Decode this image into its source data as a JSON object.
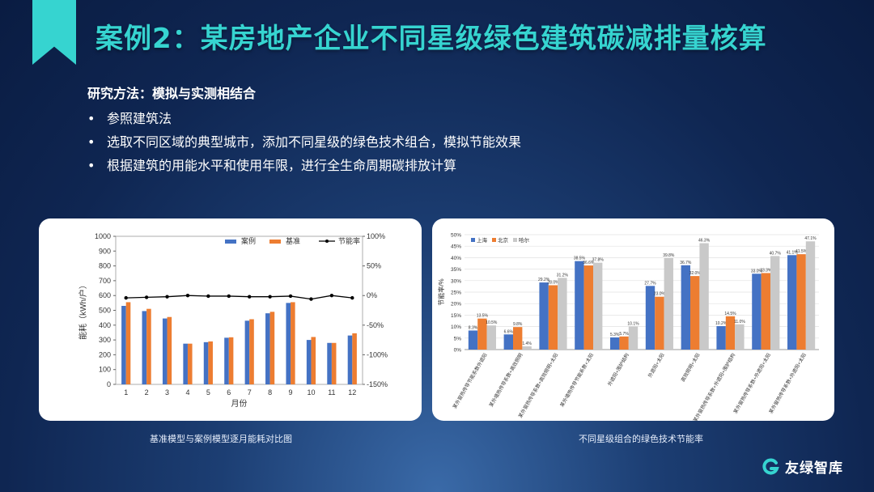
{
  "title": "案例2：某房地产企业不同星级绿色建筑碳减排量核算",
  "method": {
    "heading": "研究方法：模拟与实测相结合",
    "bullets": [
      "参照建筑法",
      "选取不同区域的典型城市，添加不同星级的绿色技术组合，模拟节能效果",
      "根据建筑的用能水平和使用年限，进行全生命周期碳排放计算"
    ]
  },
  "captions": {
    "left": "基准模型与案例模型逐月能耗对比图",
    "right": "不同星级组合的绿色技术节能率"
  },
  "logo": {
    "text": "友绿智库"
  },
  "colors": {
    "accent": "#36d4d0",
    "blue": "#4472c4",
    "orange": "#ed7d31",
    "gray": "#c9c9c9"
  },
  "chart_data": [
    {
      "type": "bar",
      "x": [
        "1",
        "2",
        "3",
        "4",
        "5",
        "6",
        "7",
        "8",
        "9",
        "10",
        "11",
        "12"
      ],
      "xlabel": "月份",
      "ylabel": "能耗（kWh/户）",
      "ylim": [
        0,
        1000
      ],
      "y_ticks": [
        "0",
        "100",
        "200",
        "300",
        "400",
        "500",
        "600",
        "700",
        "800",
        "900",
        "1000"
      ],
      "y2lim": [
        -150,
        100
      ],
      "y2_ticks": [
        "100%",
        "50%",
        "0%",
        "-50%",
        "-100%",
        "-150%"
      ],
      "legend_position": "top-right",
      "series": [
        {
          "name": "案例",
          "type": "bar",
          "values": [
            530,
            495,
            445,
            275,
            285,
            315,
            430,
            480,
            550,
            300,
            280,
            330
          ]
        },
        {
          "name": "基准",
          "type": "bar",
          "values": [
            555,
            510,
            455,
            275,
            290,
            318,
            440,
            490,
            555,
            320,
            280,
            345
          ]
        },
        {
          "name": "节能率",
          "type": "line",
          "axis": "right",
          "values": [
            -4,
            -3,
            -2,
            0,
            -1,
            -1,
            -2,
            -2,
            -1,
            -6,
            0,
            -4
          ]
        }
      ]
    },
    {
      "type": "bar",
      "ylabel": "节能率/%",
      "ylim": [
        0,
        50
      ],
      "y_ticks": [
        "0%",
        "5%",
        "10%",
        "15%",
        "20%",
        "25%",
        "30%",
        "35%",
        "40%",
        "45%",
        "50%"
      ],
      "legend_position": "top-left",
      "categories": [
        "某外窗热传导节能系数外遮阳",
        "某外墙热传导系数+高效照明",
        "某外窗热传导系数+高效照明+太阳",
        "某外墙热传导节能系数+太阳",
        "外遮阳+围护结构",
        "外遮阳+太阳",
        "高效照明+太阳",
        "某外窗热传导系数+外遮阳+围护结构",
        "某外窗热传导系数+外遮阳+太阳",
        "某外窗热传导系数+外遮阳+太阳"
      ],
      "series": [
        {
          "name": "上海",
          "values": [
            8.3,
            6.6,
            29.2,
            38.5,
            5.3,
            27.7,
            36.7,
            10.2,
            33.0,
            41.1
          ]
        },
        {
          "name": "北京",
          "values": [
            13.5,
            9.8,
            28.0,
            36.6,
            5.7,
            23.0,
            32.0,
            14.5,
            33.3,
            41.5
          ]
        },
        {
          "name": "哈尔",
          "values": [
            10.5,
            1.4,
            31.2,
            37.8,
            10.1,
            39.8,
            46.3,
            11.0,
            40.7,
            47.1
          ]
        }
      ],
      "data_labels": [
        [
          "8.3%",
          "6.6%",
          "29.2%",
          "38.5%",
          "5.3%",
          "27.7%",
          "36.7%",
          "10.2%",
          "33.0%",
          "41.1%"
        ],
        [
          "13.5%",
          "9.8%",
          "28.0%",
          "36.6%",
          "5.7%",
          "23.0%",
          "32.0%",
          "14.5%",
          "33.3%",
          "41.5%"
        ],
        [
          "10.5%",
          "1.4%",
          "31.2%",
          "37.8%",
          "10.1%",
          "39.8%",
          "46.3%",
          "11.0%",
          "40.7%",
          "47.1%"
        ]
      ]
    }
  ]
}
